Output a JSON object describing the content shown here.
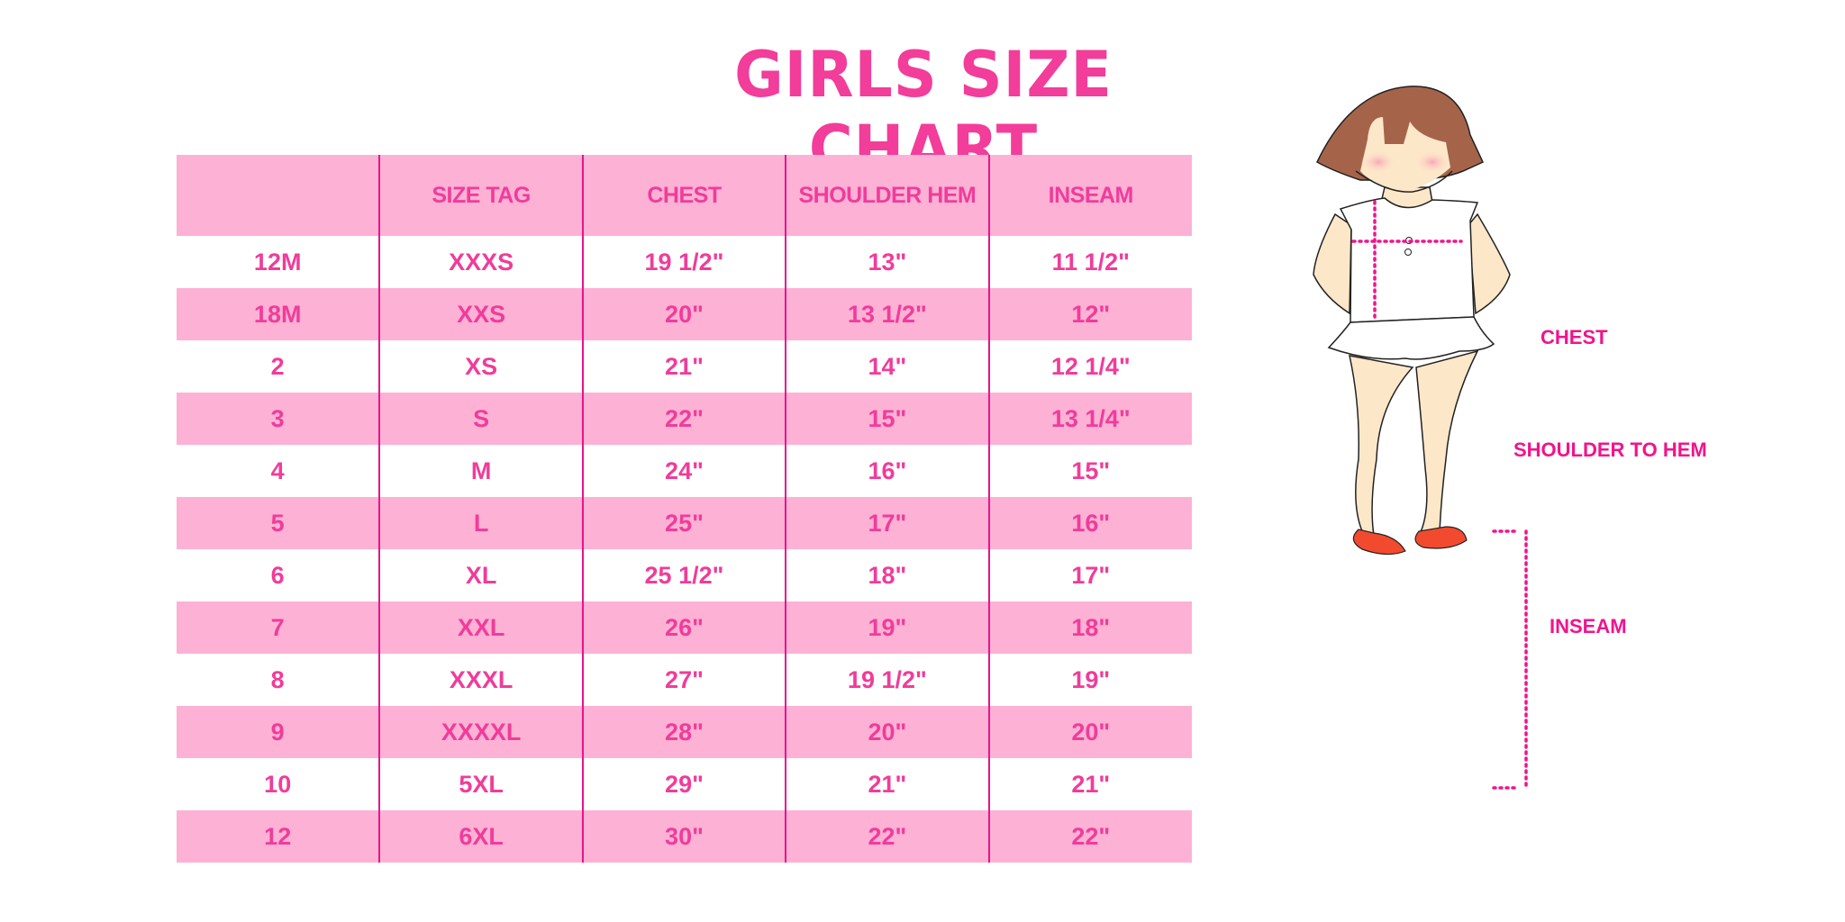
{
  "title": "GIRLS SIZE CHART",
  "table": {
    "headers": [
      "",
      "SIZE TAG",
      "CHEST",
      "SHOULDER HEM",
      "INSEAM"
    ],
    "rows": [
      [
        "12M",
        "XXXS",
        "19 1/2\"",
        "13\"",
        "11 1/2\""
      ],
      [
        "18M",
        "XXS",
        "20\"",
        "13 1/2\"",
        "12\""
      ],
      [
        "2",
        "XS",
        "21\"",
        "14\"",
        "12 1/4\""
      ],
      [
        "3",
        "S",
        "22\"",
        "15\"",
        "13 1/4\""
      ],
      [
        "4",
        "M",
        "24\"",
        "16\"",
        "15\""
      ],
      [
        "5",
        "L",
        "25\"",
        "17\"",
        "16\""
      ],
      [
        "6",
        "XL",
        "25 1/2\"",
        "18\"",
        "17\""
      ],
      [
        "7",
        "XXL",
        "26\"",
        "19\"",
        "18\""
      ],
      [
        "8",
        "XXXL",
        "27\"",
        "19 1/2\"",
        "19\""
      ],
      [
        "9",
        "XXXXL",
        "28\"",
        "20\"",
        "20\""
      ],
      [
        "10",
        "5XL",
        "29\"",
        "21\"",
        "21\""
      ],
      [
        "12",
        "6XL",
        "30\"",
        "22\"",
        "22\""
      ]
    ]
  },
  "figure": {
    "labels": {
      "chest": "CHEST",
      "shoulder": "SHOULDER TO HEM",
      "inseam": "INSEAM"
    }
  },
  "colors": {
    "accent": "#f23d9a",
    "stripe": "#fdb1d5",
    "divider": "#e8148c"
  }
}
